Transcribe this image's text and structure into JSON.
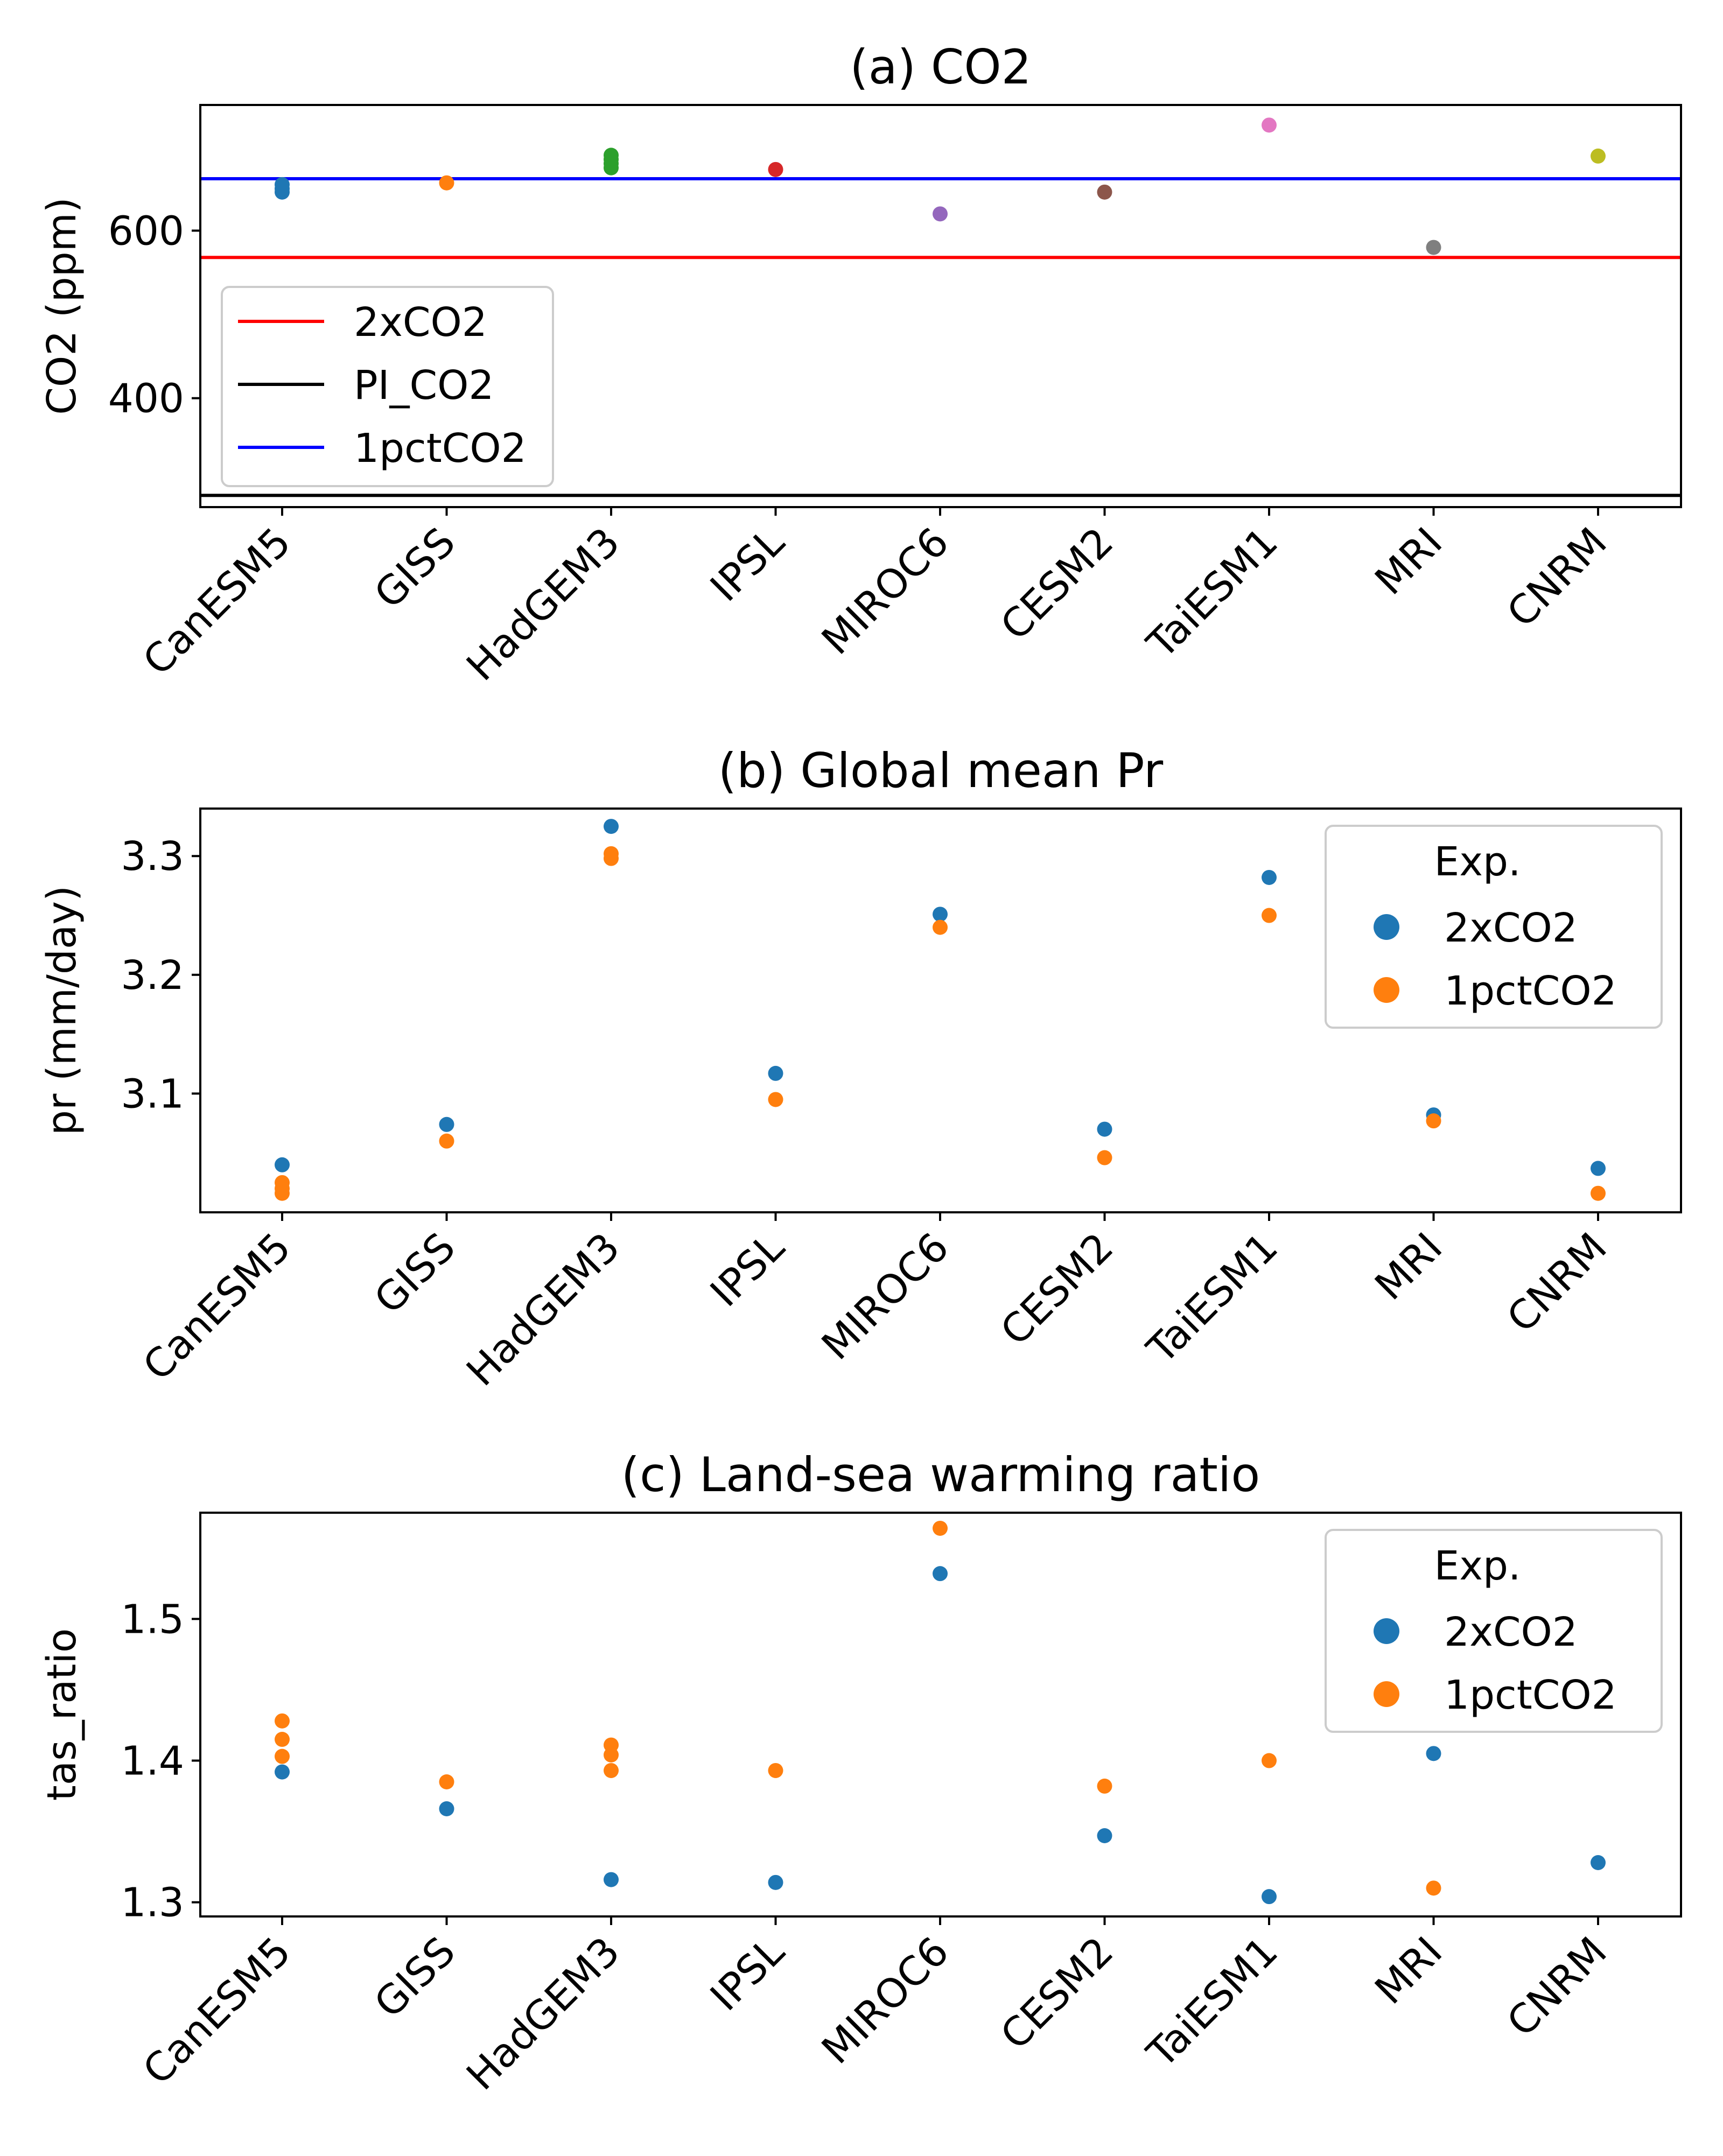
{
  "figure": {
    "categories": [
      "CanESM5",
      "GISS",
      "HadGEM3",
      "IPSL",
      "MIROC6",
      "CESM2",
      "TaiESM1",
      "MRI",
      "CNRM"
    ]
  },
  "chart_data": [
    {
      "type": "scatter",
      "title": "(a) CO2",
      "ylabel": "CO2 (ppm)",
      "xlabel": "",
      "ylim": [
        270,
        750
      ],
      "yticks": [
        400,
        600
      ],
      "categories": [
        "CanESM5",
        "GISS",
        "HadGEM3",
        "IPSL",
        "MIROC6",
        "CESM2",
        "TaiESM1",
        "MRI",
        "CNRM"
      ],
      "points": [
        {
          "category": "CanESM5",
          "values": [
            646,
            650,
            655
          ],
          "color": "#1f77b4"
        },
        {
          "category": "GISS",
          "values": [
            657
          ],
          "color": "#ff7f0e"
        },
        {
          "category": "HadGEM3",
          "values": [
            675,
            680,
            685,
            690
          ],
          "color": "#2ca02c"
        },
        {
          "category": "IPSL",
          "values": [
            673
          ],
          "color": "#d62728"
        },
        {
          "category": "MIROC6",
          "values": [
            620
          ],
          "color": "#9467bd"
        },
        {
          "category": "CESM2",
          "values": [
            646
          ],
          "color": "#8c564b"
        },
        {
          "category": "TaiESM1",
          "values": [
            726
          ],
          "color": "#e377c2"
        },
        {
          "category": "MRI",
          "values": [
            580
          ],
          "color": "#7f7f7f"
        },
        {
          "category": "CNRM",
          "values": [
            689
          ],
          "color": "#bcbd22"
        }
      ],
      "hlines": [
        {
          "name": "2xCO2",
          "value": 568,
          "color": "#ff0000"
        },
        {
          "name": "PI_CO2",
          "value": 284,
          "color": "#000000"
        },
        {
          "name": "1pctCO2",
          "value": 662,
          "color": "#0000ff"
        }
      ],
      "legend": {
        "position": "lower-left",
        "title": "",
        "entries": [
          "2xCO2",
          "PI_CO2",
          "1pctCO2"
        ]
      }
    },
    {
      "type": "scatter",
      "title": "(b) Global mean Pr",
      "ylabel": "pr (mm/day)",
      "xlabel": "",
      "ylim": [
        3.0,
        3.34
      ],
      "yticks": [
        3.1,
        3.2,
        3.3
      ],
      "categories": [
        "CanESM5",
        "GISS",
        "HadGEM3",
        "IPSL",
        "MIROC6",
        "CESM2",
        "TaiESM1",
        "MRI",
        "CNRM"
      ],
      "series": [
        {
          "name": "2xCO2",
          "color": "#1f77b4",
          "values": [
            [
              3.04
            ],
            [
              3.074
            ],
            [
              3.325
            ],
            [
              3.117
            ],
            [
              3.251
            ],
            [
              3.07
            ],
            [
              3.282
            ],
            [
              3.082
            ],
            [
              3.037
            ]
          ]
        },
        {
          "name": "1pctCO2",
          "color": "#ff7f0e",
          "values": [
            [
              3.025,
              3.02,
              3.016
            ],
            [
              3.06
            ],
            [
              3.302,
              3.298
            ],
            [
              3.095
            ],
            [
              3.24
            ],
            [
              3.046
            ],
            [
              3.25
            ],
            [
              3.077
            ],
            [
              3.016
            ]
          ]
        }
      ],
      "legend": {
        "position": "top-right",
        "title": "Exp.",
        "entries": [
          " 2xCO2",
          " 1pctCO2"
        ]
      }
    },
    {
      "type": "scatter",
      "title": "(c) Land-sea warming ratio",
      "ylabel": "tas_ratio",
      "xlabel": "",
      "ylim": [
        1.29,
        1.575
      ],
      "yticks": [
        1.3,
        1.4,
        1.5
      ],
      "categories": [
        "CanESM5",
        "GISS",
        "HadGEM3",
        "IPSL",
        "MIROC6",
        "CESM2",
        "TaiESM1",
        "MRI",
        "CNRM"
      ],
      "series": [
        {
          "name": "2xCO2",
          "color": "#1f77b4",
          "values": [
            [
              1.392
            ],
            [
              1.366
            ],
            [
              1.316
            ],
            [
              1.314
            ],
            [
              1.532
            ],
            [
              1.347
            ],
            [
              1.304
            ],
            [
              1.405
            ],
            [
              1.328
            ]
          ]
        },
        {
          "name": "1pctCO2",
          "color": "#ff7f0e",
          "values": [
            [
              1.428,
              1.415,
              1.403
            ],
            [
              1.385
            ],
            [
              1.411,
              1.404,
              1.393
            ],
            [
              1.393
            ],
            [
              1.564
            ],
            [
              1.382
            ],
            [
              1.4
            ],
            [
              1.31
            ],
            []
          ]
        }
      ],
      "legend": {
        "position": "top-right",
        "title": "Exp.",
        "entries": [
          " 2xCO2",
          " 1pctCO2"
        ]
      }
    }
  ]
}
